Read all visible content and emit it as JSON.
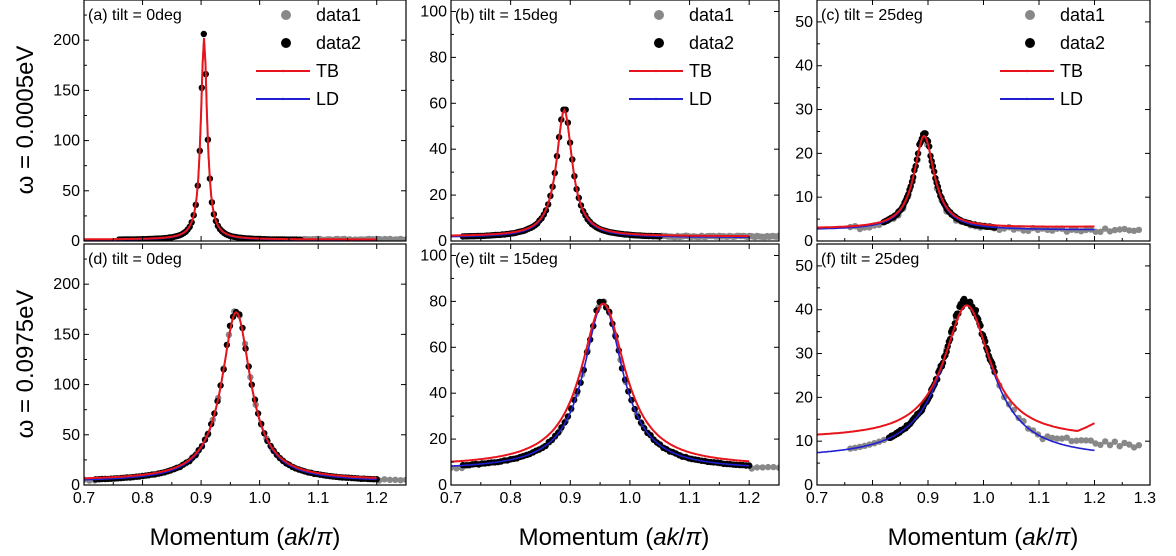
{
  "chart_data": {
    "type": "line",
    "xlabel": {
      "main": "Momentum (",
      "italic": "ak",
      "slash": "/",
      "pi": "π",
      "close": ")"
    },
    "row_labels": [
      "ω = 0.0005eV",
      "ω = 0.0975eV"
    ],
    "colors": {
      "data1": "#888888",
      "data2": "#000000",
      "TB": "#e8141b",
      "LD": "#2020d0"
    },
    "legend_labels": [
      "data1",
      "data2",
      "TB",
      "LD"
    ],
    "legend_placement": "top-right",
    "panels": [
      {
        "title": "(a) tilt = 0deg",
        "xlim": [
          0.7,
          1.25
        ],
        "xticks": [
          0.7,
          0.8,
          0.9,
          1.0,
          1.1,
          1.2
        ],
        "xtick_labels": [
          "0.7",
          "0.8",
          "0.9",
          "1.0",
          "1.1",
          "1.2"
        ],
        "ylim": [
          0,
          240
        ],
        "yticks": [
          0,
          50,
          100,
          150,
          200
        ],
        "ytick_labels": [
          "0",
          "50",
          "100",
          "150",
          "200"
        ],
        "peak": {
          "x0": 0.905,
          "peak": 203,
          "gamma": 0.0065,
          "base": 1.0
        },
        "data1_range": [
          1.07,
          1.25
        ],
        "data1_level": 1.5,
        "data2_range": [
          0.76,
          1.07
        ],
        "TB": {
          "range": [
            0.7,
            1.2
          ],
          "base": 1.5,
          "gamma": 0.0065,
          "peak": 202
        },
        "LD": {
          "range": [
            0.7,
            1.2
          ],
          "base": 1.0,
          "gamma": 0.0065,
          "peak": 202
        },
        "show_legend": true
      },
      {
        "title": "(b) tilt = 15deg",
        "xlim": [
          0.7,
          1.25
        ],
        "xticks": [
          0.7,
          0.8,
          0.9,
          1.0,
          1.1,
          1.2
        ],
        "xtick_labels": [
          "0.7",
          "0.8",
          "0.9",
          "1.0",
          "1.1",
          "1.2"
        ],
        "ylim": [
          0,
          105
        ],
        "yticks": [
          0,
          20,
          40,
          60,
          80,
          100
        ],
        "ytick_labels": [
          "0",
          "20",
          "40",
          "60",
          "80",
          "100"
        ],
        "peak": {
          "x0": 0.89,
          "peak": 58,
          "gamma": 0.016,
          "base": 1.5
        },
        "data1_range": [
          1.05,
          1.25
        ],
        "data1_level": 2.0,
        "data2_range": [
          0.72,
          1.05
        ],
        "TB": {
          "range": [
            0.7,
            1.2
          ],
          "base": 2.0,
          "gamma": 0.016,
          "peak": 57
        },
        "LD": {
          "range": [
            0.7,
            1.2
          ],
          "base": 1.5,
          "gamma": 0.016,
          "peak": 57
        },
        "show_legend": true
      },
      {
        "title": "(c) tilt = 25deg",
        "xlim": [
          0.7,
          1.3
        ],
        "xticks": [
          0.7,
          0.8,
          0.9,
          1.0,
          1.1,
          1.2,
          1.3
        ],
        "xtick_labels": [
          "",
          "",
          "",
          "",
          "",
          "",
          ""
        ],
        "ylim": [
          0,
          55
        ],
        "yticks": [
          0,
          10,
          20,
          30,
          40,
          50
        ],
        "ytick_labels": [
          "0",
          "10",
          "20",
          "30",
          "40",
          "50"
        ],
        "peak": {
          "x0": 0.893,
          "peak": 24.5,
          "gamma": 0.022,
          "base": 2.5
        },
        "data1_range": [
          0.76,
          1.28
        ],
        "data1_level": 2.0,
        "data2_range": [
          0.82,
          1.02
        ],
        "TB": {
          "range": [
            0.7,
            1.2
          ],
          "base": 2.8,
          "gamma": 0.022,
          "peak": 24,
          "rise": 1.3
        },
        "LD": {
          "range": [
            0.7,
            1.2
          ],
          "base": 2.5,
          "gamma": 0.022,
          "peak": 24
        },
        "show_legend": true
      },
      {
        "title": "(d) tilt = 0deg",
        "xlim": [
          0.7,
          1.25
        ],
        "xticks": [
          0.7,
          0.8,
          0.9,
          1.0,
          1.1,
          1.2
        ],
        "xtick_labels": [
          "0.7",
          "0.8",
          "0.9",
          "1.0",
          "1.1",
          "1.2"
        ],
        "ylim": [
          0,
          240
        ],
        "yticks": [
          0,
          50,
          100,
          150,
          200
        ],
        "ytick_labels": [
          "0",
          "50",
          "100",
          "150",
          "200"
        ],
        "peak": {
          "x0": 0.96,
          "peak": 175,
          "gamma": 0.03,
          "base": 3.0
        },
        "data1_range": [
          0.7,
          1.25
        ],
        "data1_level": 5.0,
        "data2_range": [
          0.72,
          1.2
        ],
        "TB": {
          "range": [
            0.7,
            1.2
          ],
          "base": 4.5,
          "gamma": 0.03,
          "peak": 172
        },
        "LD": {
          "range": [
            0.7,
            1.2
          ],
          "base": 3.0,
          "gamma": 0.03,
          "peak": 172
        },
        "show_legend": false
      },
      {
        "title": "(e) tilt = 15deg",
        "xlim": [
          0.7,
          1.25
        ],
        "xticks": [
          0.7,
          0.8,
          0.9,
          1.0,
          1.1,
          1.2
        ],
        "xtick_labels": [
          "0.7",
          "0.8",
          "0.9",
          "1.0",
          "1.1",
          "1.2"
        ],
        "ylim": [
          0,
          105
        ],
        "yticks": [
          0,
          20,
          40,
          60,
          80,
          100
        ],
        "ytick_labels": [
          "0",
          "20",
          "40",
          "60",
          "80",
          "100"
        ],
        "peak": {
          "x0": 0.955,
          "peak": 80,
          "gamma": 0.04,
          "base": 6.5
        },
        "data1_range": [
          0.7,
          1.25
        ],
        "data1_level": 7.5,
        "data2_range": [
          0.72,
          1.2
        ],
        "TB": {
          "range": [
            0.7,
            1.2
          ],
          "base": 8.0,
          "gamma": 0.045,
          "peak": 79
        },
        "LD": {
          "range": [
            0.7,
            1.2
          ],
          "base": 6.5,
          "gamma": 0.04,
          "peak": 79
        },
        "show_legend": false
      },
      {
        "title": "(f) tilt = 25deg",
        "xlim": [
          0.7,
          1.3
        ],
        "xticks": [
          0.7,
          0.8,
          0.9,
          1.0,
          1.1,
          1.2,
          1.3
        ],
        "xtick_labels": [
          "0.7",
          "0.8",
          "0.9",
          "1.0",
          "1.1",
          "1.2",
          "1.3"
        ],
        "ylim": [
          0,
          55
        ],
        "yticks": [
          0,
          10,
          20,
          30,
          40,
          50
        ],
        "ytick_labels": [
          "0",
          "10",
          "20",
          "30",
          "40",
          "50"
        ],
        "peak": {
          "x0": 0.97,
          "peak": 42,
          "gamma": 0.055,
          "base": 6.0
        },
        "data1_range": [
          0.76,
          1.28
        ],
        "data1_level": 9.0,
        "data2_range": [
          0.83,
          1.02
        ],
        "TB": {
          "custom": "upturn",
          "range": [
            0.7,
            1.2
          ]
        },
        "LD": {
          "range": [
            0.7,
            1.2
          ],
          "base": 6.0,
          "gamma": 0.055,
          "peak": 41
        },
        "show_legend": false
      }
    ]
  }
}
